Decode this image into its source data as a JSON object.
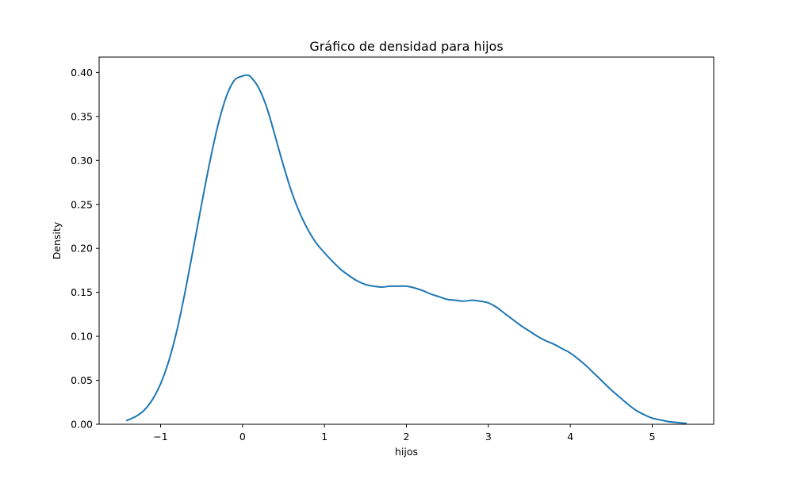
{
  "chart_data": {
    "type": "line",
    "title": "Gráfico de densidad para hijos",
    "xlabel": "hijos",
    "ylabel": "Density",
    "xlim": [
      -1.75,
      5.75
    ],
    "ylim": [
      0,
      0.4175
    ],
    "x_ticks": [
      "−1",
      "0",
      "1",
      "2",
      "3",
      "4",
      "5"
    ],
    "x_tick_values": [
      -1,
      0,
      1,
      2,
      3,
      4,
      5
    ],
    "y_ticks": [
      "0.00",
      "0.05",
      "0.10",
      "0.15",
      "0.20",
      "0.25",
      "0.30",
      "0.35",
      "0.40"
    ],
    "y_tick_values": [
      0,
      0.05,
      0.1,
      0.15,
      0.2,
      0.25,
      0.3,
      0.35,
      0.4
    ],
    "grid": false,
    "legend": "none",
    "series": [
      {
        "color": "#1f77b4",
        "x": [
          -1.42,
          -1.3,
          -1.2,
          -1.1,
          -1.0,
          -0.9,
          -0.8,
          -0.7,
          -0.6,
          -0.5,
          -0.4,
          -0.3,
          -0.2,
          -0.1,
          0.0,
          0.05,
          0.1,
          0.2,
          0.3,
          0.4,
          0.5,
          0.6,
          0.7,
          0.8,
          0.9,
          1.0,
          1.1,
          1.2,
          1.3,
          1.4,
          1.5,
          1.6,
          1.7,
          1.8,
          1.9,
          2.0,
          2.1,
          2.2,
          2.3,
          2.4,
          2.5,
          2.6,
          2.7,
          2.8,
          2.9,
          3.0,
          3.1,
          3.2,
          3.3,
          3.4,
          3.5,
          3.6,
          3.7,
          3.8,
          3.9,
          4.0,
          4.1,
          4.2,
          4.3,
          4.4,
          4.5,
          4.6,
          4.7,
          4.8,
          4.9,
          5.0,
          5.1,
          5.2,
          5.3,
          5.42
        ],
        "y": [
          0.004,
          0.009,
          0.016,
          0.028,
          0.046,
          0.072,
          0.107,
          0.151,
          0.2,
          0.25,
          0.298,
          0.34,
          0.372,
          0.391,
          0.396,
          0.397,
          0.395,
          0.382,
          0.359,
          0.327,
          0.294,
          0.264,
          0.24,
          0.221,
          0.206,
          0.195,
          0.185,
          0.176,
          0.169,
          0.163,
          0.159,
          0.157,
          0.156,
          0.157,
          0.157,
          0.157,
          0.155,
          0.152,
          0.148,
          0.145,
          0.142,
          0.141,
          0.14,
          0.141,
          0.14,
          0.138,
          0.133,
          0.126,
          0.119,
          0.112,
          0.106,
          0.1,
          0.095,
          0.091,
          0.086,
          0.081,
          0.074,
          0.066,
          0.057,
          0.048,
          0.039,
          0.031,
          0.023,
          0.016,
          0.011,
          0.007,
          0.005,
          0.003,
          0.002,
          0.001
        ]
      }
    ]
  }
}
